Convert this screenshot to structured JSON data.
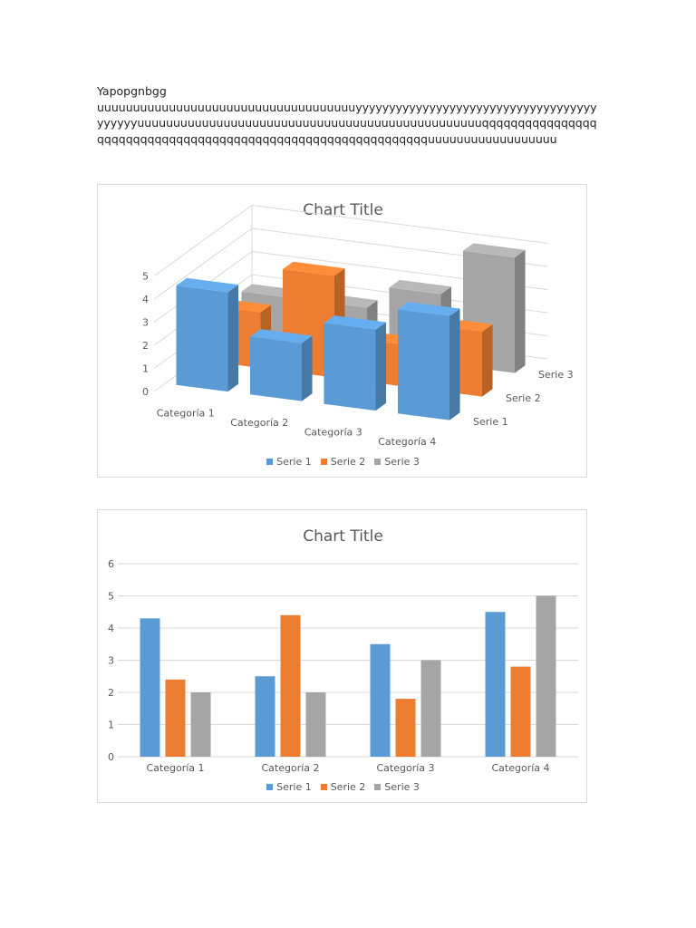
{
  "document": {
    "heading": "Yapopgnbgg",
    "body": "uuuuuuuuuuuuuuuuuuuuuuuuuuuuuuuuuuuuyyyyyyyyyyyyyyyyyyyyyyyyyyyyyyyyyyyyyyyyyyuuuuuuuuuuuuuuuuuuuuuuuuuuuuuuuuuuuuuuuuuuuuuuuuqqqqqqqqqqqqqqqqqqqqqqqqqqqqqqqqqqqqqqqqqqqqqqqqqqqqqqqqqqqqqquuuuuuuuuuuuuuuuuu"
  },
  "chart_data": [
    {
      "type": "bar",
      "style": "3d-clustered-column",
      "title": "Chart Title",
      "categories": [
        "Categoría 1",
        "Categoría 2",
        "Categoría 3",
        "Categoría 4"
      ],
      "series": [
        {
          "name": "Serie 1",
          "values": [
            4.3,
            2.5,
            3.5,
            4.5
          ],
          "color": "#5b9bd5"
        },
        {
          "name": "Serie 2",
          "values": [
            2.4,
            4.4,
            1.8,
            2.8
          ],
          "color": "#ed7d31"
        },
        {
          "name": "Serie 3",
          "values": [
            2,
            2,
            3,
            5
          ],
          "color": "#a5a5a5"
        }
      ],
      "ylim": [
        0,
        5
      ],
      "yticks": [
        0,
        1,
        2,
        3,
        4,
        5
      ],
      "grid": true,
      "legend": "bottom"
    },
    {
      "type": "bar",
      "title": "Chart Title",
      "categories": [
        "Categoría 1",
        "Categoría 2",
        "Categoría 3",
        "Categoría 4"
      ],
      "series": [
        {
          "name": "Serie 1",
          "values": [
            4.3,
            2.5,
            3.5,
            4.5
          ],
          "color": "#5b9bd5"
        },
        {
          "name": "Serie 2",
          "values": [
            2.4,
            4.4,
            1.8,
            2.8
          ],
          "color": "#ed7d31"
        },
        {
          "name": "Serie 3",
          "values": [
            2,
            2,
            3,
            5
          ],
          "color": "#a5a5a5"
        }
      ],
      "ylim": [
        0,
        6
      ],
      "yticks": [
        0,
        1,
        2,
        3,
        4,
        5,
        6
      ],
      "grid": true,
      "legend": "bottom"
    }
  ]
}
